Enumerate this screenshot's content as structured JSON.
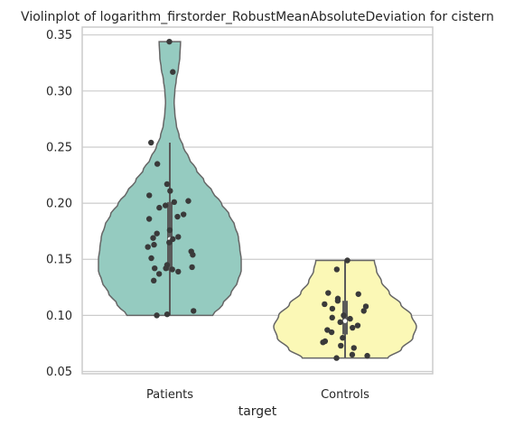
{
  "chart_data": {
    "type": "violin",
    "title": "Violinplot of logarithm_firstorder_RobustMeanAbsoluteDeviation for cistern",
    "xlabel": "target",
    "ylabel": "",
    "categories": [
      "Patients",
      "Controls"
    ],
    "ylim": [
      0.048,
      0.357
    ],
    "yticks": [
      0.05,
      0.1,
      0.15,
      0.2,
      0.25,
      0.3,
      0.35
    ],
    "ytick_labels": [
      "0.05",
      "0.10",
      "0.15",
      "0.20",
      "0.25",
      "0.30",
      "0.35"
    ],
    "grid": "horizontal",
    "colors": {
      "Patients": "#95cbc0",
      "Controls": "#fbf8b6",
      "violin_edge": "#666666",
      "points": "#3a3a3a",
      "box": "#5a5a5a",
      "median": "#ffffff",
      "grid": "#cccccc",
      "spine": "#cccccc"
    },
    "violins": [
      {
        "name": "Patients",
        "range": [
          0.1,
          0.344
        ],
        "box": {
          "q1": 0.14,
          "median": 0.168,
          "q3": 0.201,
          "whisker_low": 0.1,
          "whisker_high": 0.254
        },
        "density": [
          [
            0.1,
            0.6
          ],
          [
            0.11,
            0.74
          ],
          [
            0.12,
            0.86
          ],
          [
            0.13,
            0.95
          ],
          [
            0.14,
            1.0
          ],
          [
            0.15,
            1.0
          ],
          [
            0.16,
            0.98
          ],
          [
            0.17,
            0.96
          ],
          [
            0.18,
            0.91
          ],
          [
            0.19,
            0.83
          ],
          [
            0.2,
            0.72
          ],
          [
            0.21,
            0.6
          ],
          [
            0.22,
            0.48
          ],
          [
            0.23,
            0.37
          ],
          [
            0.24,
            0.27
          ],
          [
            0.25,
            0.19
          ],
          [
            0.26,
            0.13
          ],
          [
            0.27,
            0.09
          ],
          [
            0.28,
            0.07
          ],
          [
            0.29,
            0.06
          ],
          [
            0.3,
            0.07
          ],
          [
            0.31,
            0.09
          ],
          [
            0.32,
            0.12
          ],
          [
            0.33,
            0.14
          ],
          [
            0.344,
            0.15
          ]
        ],
        "points": [
          0.344,
          0.317,
          0.254,
          0.235,
          0.217,
          0.211,
          0.207,
          0.202,
          0.201,
          0.198,
          0.196,
          0.19,
          0.188,
          0.186,
          0.176,
          0.173,
          0.17,
          0.169,
          0.168,
          0.165,
          0.163,
          0.161,
          0.157,
          0.154,
          0.151,
          0.145,
          0.143,
          0.142,
          0.142,
          0.141,
          0.139,
          0.137,
          0.131,
          0.104,
          0.101,
          0.1
        ]
      },
      {
        "name": "Controls",
        "range": [
          0.062,
          0.149
        ],
        "box": {
          "q1": 0.083,
          "median": 0.095,
          "q3": 0.113,
          "whisker_low": 0.062,
          "whisker_high": 0.149
        },
        "density": [
          [
            0.062,
            0.6
          ],
          [
            0.07,
            0.79
          ],
          [
            0.08,
            0.95
          ],
          [
            0.09,
            1.0
          ],
          [
            0.1,
            0.93
          ],
          [
            0.11,
            0.78
          ],
          [
            0.12,
            0.62
          ],
          [
            0.13,
            0.51
          ],
          [
            0.14,
            0.44
          ],
          [
            0.149,
            0.41
          ]
        ],
        "points": [
          0.149,
          0.141,
          0.12,
          0.119,
          0.115,
          0.113,
          0.11,
          0.108,
          0.106,
          0.104,
          0.1,
          0.098,
          0.097,
          0.094,
          0.091,
          0.089,
          0.087,
          0.085,
          0.08,
          0.077,
          0.076,
          0.073,
          0.071,
          0.065,
          0.064,
          0.062
        ]
      }
    ]
  }
}
